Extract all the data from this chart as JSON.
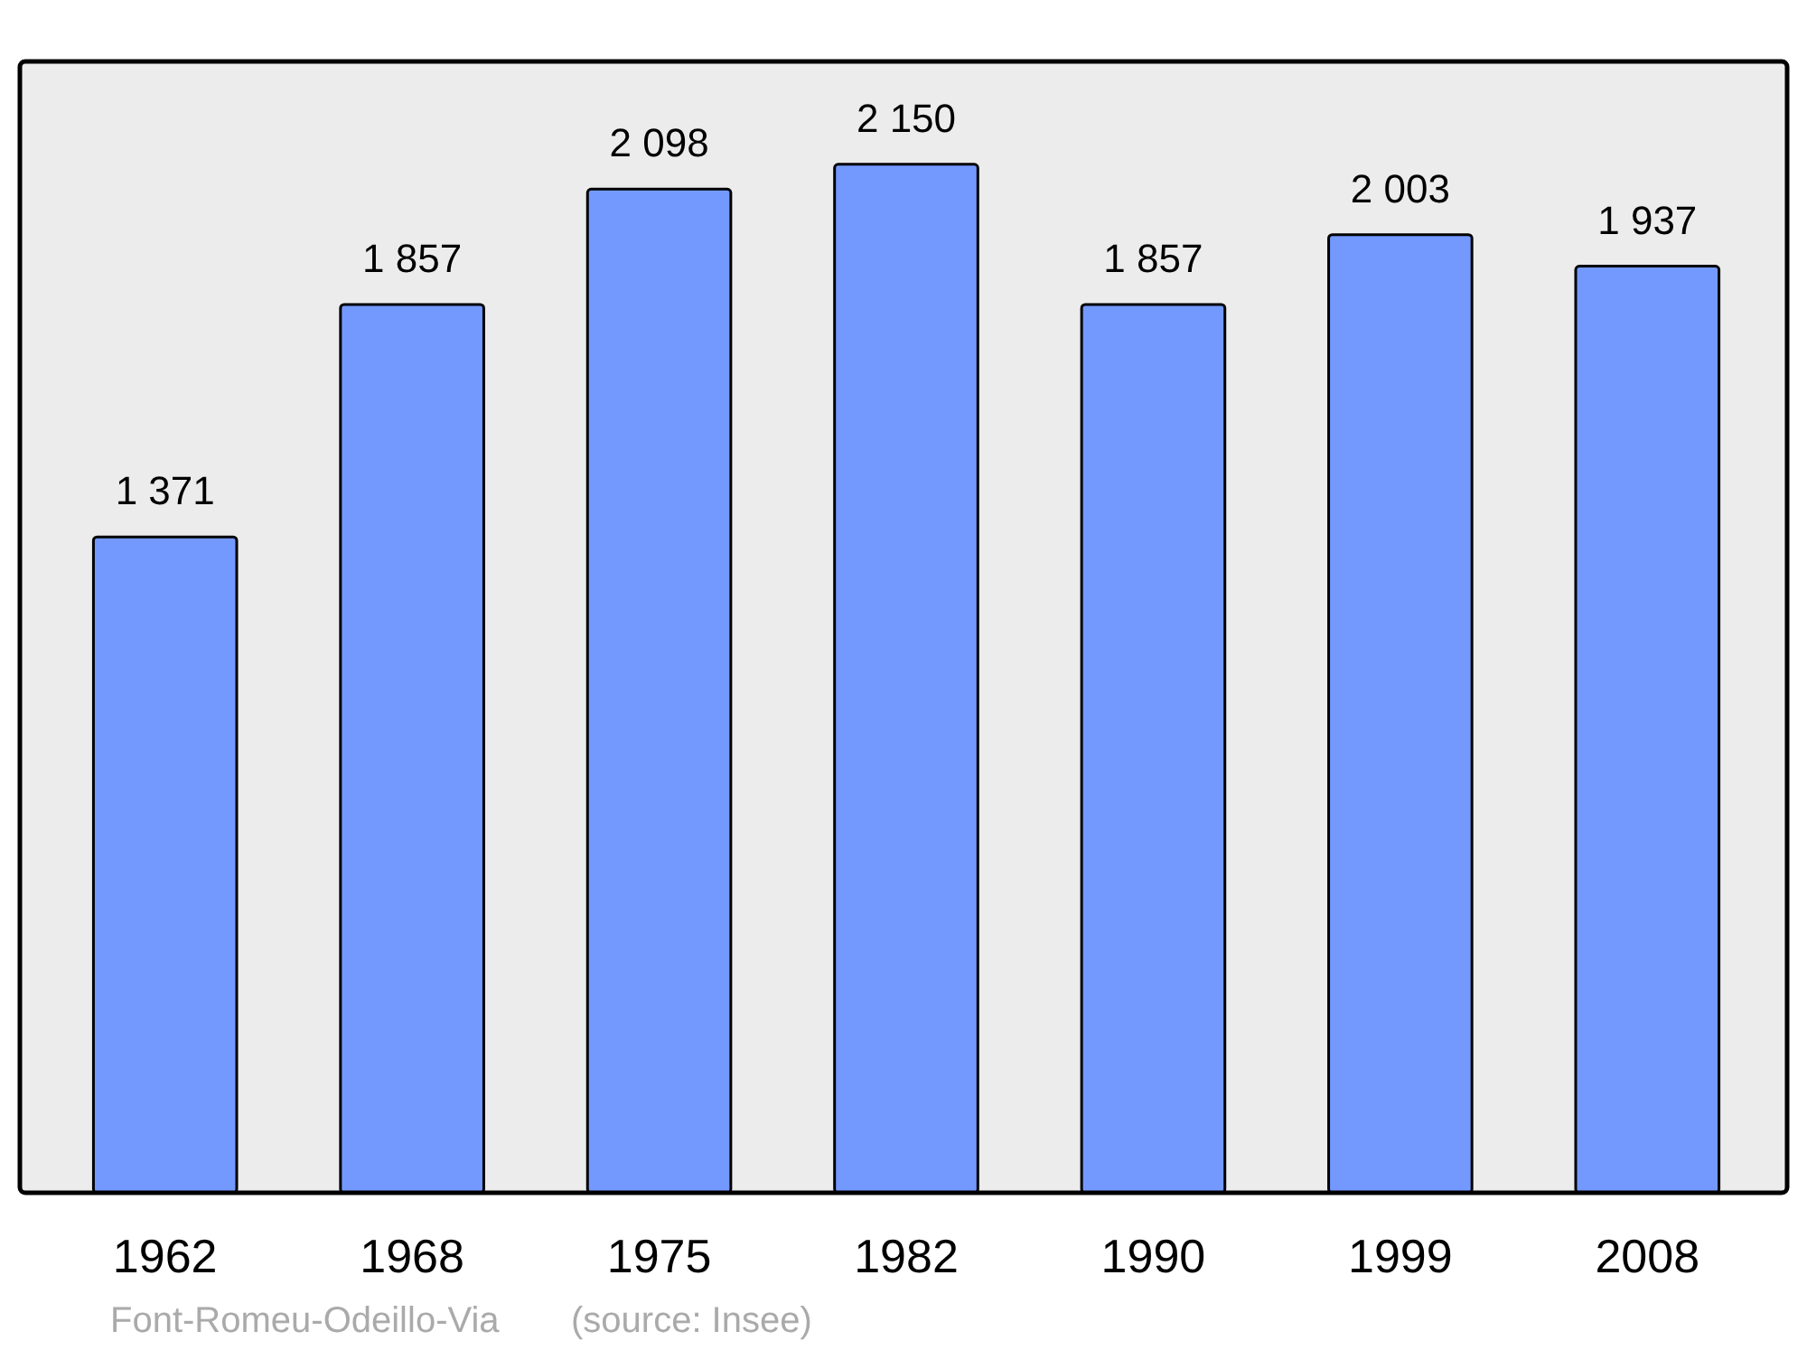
{
  "chart_data": {
    "type": "bar",
    "categories": [
      "1962",
      "1968",
      "1975",
      "1982",
      "1990",
      "1999",
      "2008"
    ],
    "values": [
      1371,
      1857,
      2098,
      2150,
      1857,
      2003,
      1937
    ],
    "value_labels": [
      "1 371",
      "1 857",
      "2 098",
      "2 150",
      "1 857",
      "2 003",
      "1 937"
    ],
    "color": "#7399ff",
    "annotations": [
      "Font-Romeu-Odeillo-Via",
      "(source: Insee)"
    ]
  }
}
